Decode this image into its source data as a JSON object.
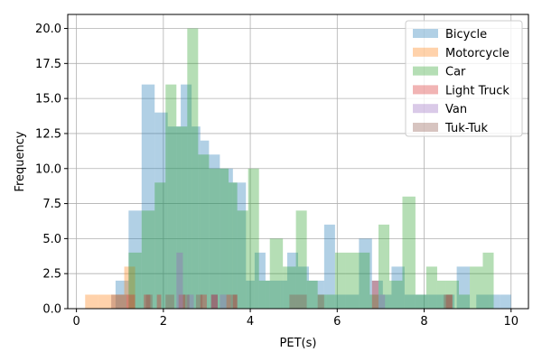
{
  "chart_data": {
    "type": "histogram",
    "xlabel": "PET(s)",
    "ylabel": "Frequency",
    "xlim": [
      -0.2,
      10.4
    ],
    "ylim": [
      0,
      21
    ],
    "xticks": [
      0,
      2,
      4,
      6,
      8,
      10
    ],
    "xtick_labels": [
      "0",
      "2",
      "4",
      "6",
      "8",
      "10"
    ],
    "yticks": [
      0,
      2.5,
      5,
      7.5,
      10,
      12.5,
      15,
      17.5,
      20
    ],
    "ytick_labels": [
      "0.0",
      "2.5",
      "5.0",
      "7.5",
      "10.0",
      "12.5",
      "15.0",
      "17.5",
      "20.0"
    ],
    "grid": true,
    "legend_position": "upper right",
    "series": [
      {
        "name": " Bicycle",
        "color": "#1f77b4",
        "bins": [
          [
            0.9,
            1.2,
            2
          ],
          [
            1.2,
            1.5,
            7
          ],
          [
            1.5,
            1.8,
            16
          ],
          [
            1.8,
            2.1,
            14
          ],
          [
            2.1,
            2.4,
            13
          ],
          [
            2.4,
            2.65,
            16
          ],
          [
            2.65,
            2.85,
            13
          ],
          [
            2.85,
            3.05,
            12
          ],
          [
            3.05,
            3.3,
            11
          ],
          [
            3.3,
            3.6,
            10
          ],
          [
            3.6,
            3.9,
            9
          ],
          [
            3.9,
            4.1,
            2
          ],
          [
            4.1,
            4.35,
            4
          ],
          [
            4.35,
            4.7,
            2
          ],
          [
            4.7,
            4.85,
            2
          ],
          [
            4.85,
            5.1,
            4
          ],
          [
            5.1,
            5.35,
            3
          ],
          [
            5.35,
            5.7,
            2
          ],
          [
            5.7,
            5.95,
            6
          ],
          [
            5.95,
            6.15,
            1
          ],
          [
            6.15,
            6.5,
            1
          ],
          [
            6.5,
            6.8,
            5
          ],
          [
            6.8,
            7.05,
            2
          ],
          [
            7.05,
            7.25,
            1
          ],
          [
            7.25,
            7.55,
            3
          ],
          [
            7.55,
            7.8,
            1
          ],
          [
            7.8,
            8.1,
            1
          ],
          [
            8.1,
            8.4,
            1
          ],
          [
            8.4,
            8.7,
            1
          ],
          [
            8.75,
            9.05,
            3
          ],
          [
            9.2,
            9.5,
            1
          ],
          [
            9.5,
            9.75,
            1
          ],
          [
            9.75,
            10.0,
            1
          ]
        ]
      },
      {
        "name": " Motorcycle",
        "color": "#ff7f0e",
        "bins": [
          [
            0.2,
            0.5,
            1
          ],
          [
            0.5,
            0.8,
            1
          ],
          [
            0.8,
            1.1,
            1
          ],
          [
            1.1,
            1.35,
            3
          ]
        ]
      },
      {
        "name": " Car",
        "color": "#2ca02c",
        "bins": [
          [
            1.2,
            1.5,
            4
          ],
          [
            1.5,
            1.8,
            7
          ],
          [
            1.8,
            2.05,
            9
          ],
          [
            2.05,
            2.3,
            16
          ],
          [
            2.3,
            2.55,
            13
          ],
          [
            2.55,
            2.8,
            20
          ],
          [
            2.8,
            3.05,
            11
          ],
          [
            3.05,
            3.3,
            10
          ],
          [
            3.3,
            3.5,
            10
          ],
          [
            3.5,
            3.7,
            9
          ],
          [
            3.7,
            3.95,
            7
          ],
          [
            3.95,
            4.2,
            10
          ],
          [
            4.2,
            4.45,
            2
          ],
          [
            4.45,
            4.75,
            5
          ],
          [
            4.75,
            5.05,
            3
          ],
          [
            5.05,
            5.3,
            7
          ],
          [
            5.3,
            5.55,
            2
          ],
          [
            5.55,
            5.75,
            1
          ],
          [
            5.75,
            5.95,
            1
          ],
          [
            5.95,
            6.2,
            4
          ],
          [
            6.2,
            6.5,
            4
          ],
          [
            6.5,
            6.75,
            4
          ],
          [
            6.75,
            6.95,
            1
          ],
          [
            6.95,
            7.2,
            6
          ],
          [
            7.2,
            7.5,
            2
          ],
          [
            7.5,
            7.8,
            8
          ],
          [
            7.8,
            8.05,
            1
          ],
          [
            8.05,
            8.3,
            3
          ],
          [
            8.3,
            8.5,
            2
          ],
          [
            8.5,
            8.8,
            2
          ],
          [
            8.8,
            9.05,
            1
          ],
          [
            9.05,
            9.35,
            3
          ],
          [
            9.35,
            9.6,
            4
          ]
        ]
      },
      {
        "name": " Light Truck",
        "color": "#d62728",
        "bins": [
          [
            1.15,
            1.35,
            1
          ],
          [
            1.55,
            1.7,
            1
          ],
          [
            1.85,
            1.95,
            1
          ],
          [
            2.35,
            2.5,
            1
          ],
          [
            2.85,
            3.0,
            1
          ],
          [
            3.1,
            3.25,
            1
          ],
          [
            3.45,
            3.55,
            1
          ],
          [
            3.6,
            3.7,
            1
          ],
          [
            6.8,
            6.95,
            2
          ],
          [
            8.5,
            8.65,
            1
          ]
        ]
      },
      {
        "name": " Van",
        "color": "#9467bd",
        "bins": [
          [
            2.3,
            2.45,
            4
          ],
          [
            2.55,
            2.7,
            1
          ],
          [
            3.1,
            3.25,
            1
          ],
          [
            3.3,
            3.45,
            1
          ],
          [
            6.95,
            7.1,
            1
          ]
        ]
      },
      {
        "name": " Tuk-Tuk",
        "color": "#8c564b",
        "bins": [
          [
            0.8,
            1.15,
            1
          ],
          [
            1.6,
            1.75,
            1
          ],
          [
            2.05,
            2.25,
            1
          ],
          [
            2.45,
            2.6,
            1
          ],
          [
            2.75,
            2.9,
            1
          ],
          [
            3.1,
            3.25,
            1
          ],
          [
            3.55,
            3.7,
            1
          ],
          [
            4.9,
            5.1,
            1
          ],
          [
            5.1,
            5.3,
            1
          ],
          [
            5.55,
            5.7,
            1
          ],
          [
            8.45,
            8.65,
            1
          ]
        ]
      }
    ]
  }
}
